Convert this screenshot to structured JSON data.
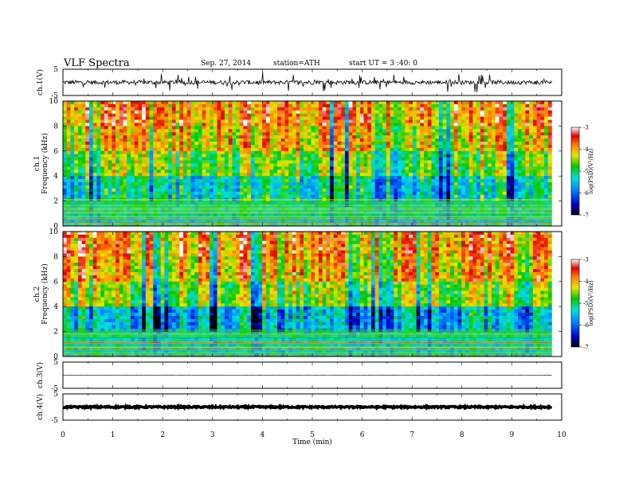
{
  "header": {
    "title": "VLF  Spectra",
    "date": "Sep. 27, 2014",
    "station": "station=ATH",
    "start": "start  UT =   3  :40: 0"
  },
  "chart_data": [
    {
      "type": "line",
      "panel": "ch1-waveform",
      "ylabel": "ch.1(V)",
      "ylim": [
        -5,
        5
      ],
      "yticks": [
        5,
        -5
      ],
      "xlim": [
        0,
        10
      ],
      "x_end": 9.8,
      "baseline": 0.0,
      "noise_amplitude": 0.8,
      "spike_amplitude": 3.5
    },
    {
      "type": "heatmap",
      "panel": "ch1-spectrogram",
      "ylabel_channel": "ch.1",
      "ylabel": "Frequency  (kHz)",
      "ylim": [
        0,
        10
      ],
      "yticks": [
        0,
        2,
        4,
        6,
        8,
        10
      ],
      "xlim": [
        0,
        10
      ],
      "x_end": 9.8,
      "colorbar": {
        "label": "log(PSD)(V²/Hz)",
        "range": [
          -7,
          -3
        ],
        "ticks": [
          -3,
          -4,
          -5,
          -6,
          -7
        ]
      },
      "dominant_levels": [
        {
          "f_from": 0,
          "f_to": 2,
          "log_psd": -5.3
        },
        {
          "f_from": 2,
          "f_to": 4,
          "log_psd": -5.2
        },
        {
          "f_from": 4,
          "f_to": 6,
          "log_psd": -4.6
        },
        {
          "f_from": 6,
          "f_to": 8,
          "log_psd": -4.1
        },
        {
          "f_from": 8,
          "f_to": 10,
          "log_psd": -3.8
        }
      ]
    },
    {
      "type": "heatmap",
      "panel": "ch2-spectrogram",
      "ylabel_channel": "ch.2",
      "ylabel": "Frequency  (kHz)",
      "ylim": [
        0,
        10
      ],
      "yticks": [
        0,
        2,
        4,
        6,
        8,
        10
      ],
      "xlim": [
        0,
        10
      ],
      "x_end": 9.8,
      "colorbar": {
        "label": "log(PSD)(V²/Hz)",
        "range": [
          -7,
          -3
        ],
        "ticks": [
          -3,
          -4,
          -5,
          -6,
          -7
        ]
      },
      "dominant_levels": [
        {
          "f_from": 0,
          "f_to": 2,
          "log_psd": -5.3
        },
        {
          "f_from": 2,
          "f_to": 4,
          "log_psd": -5.5
        },
        {
          "f_from": 4,
          "f_to": 6,
          "log_psd": -4.5
        },
        {
          "f_from": 6,
          "f_to": 8,
          "log_psd": -4.0
        },
        {
          "f_from": 8,
          "f_to": 10,
          "log_psd": -3.8
        }
      ]
    },
    {
      "type": "line",
      "panel": "ch3-waveform",
      "ylabel": "ch.3(V)",
      "ylim": [
        -5,
        5
      ],
      "yticks": [
        5,
        -5
      ],
      "xlim": [
        0,
        10
      ],
      "x_end": 9.8,
      "baseline": 0.0,
      "noise_amplitude": 0.1
    },
    {
      "type": "line",
      "panel": "ch4-waveform",
      "ylabel": "ch.4(V)",
      "ylim": [
        -5,
        5
      ],
      "yticks": [
        5,
        -5
      ],
      "xlim": [
        0,
        10
      ],
      "x_end": 9.8,
      "baseline": 0.0,
      "noise_amplitude": 0.3
    }
  ],
  "x_axis": {
    "label": "Time  (min)",
    "ticks": [
      0,
      1,
      2,
      3,
      4,
      5,
      6,
      7,
      8,
      9,
      10
    ]
  },
  "colors": {
    "trace": "#000000",
    "axes": "#000000"
  }
}
